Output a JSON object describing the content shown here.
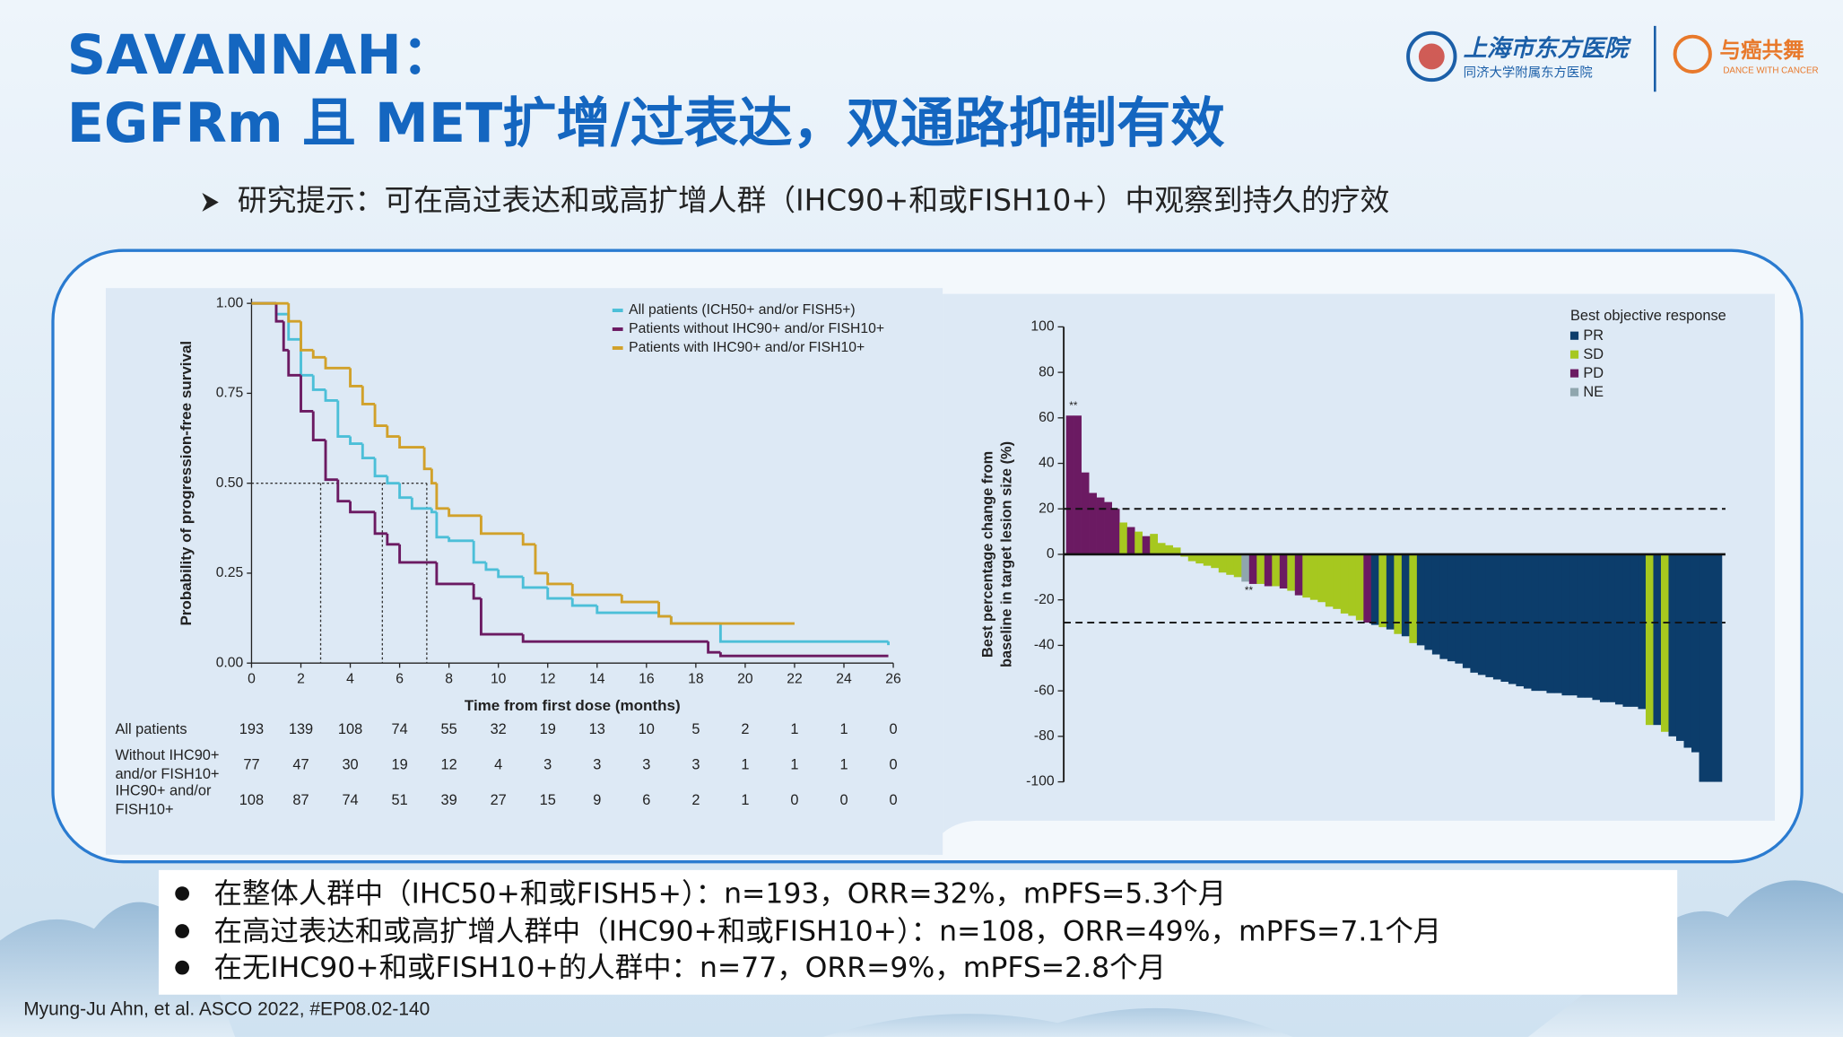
{
  "slide": {
    "title_lines": [
      "SAVANNAH：",
      "EGFRm 且 MET扩增/过表达，双通路抑制有效"
    ],
    "subtitle": "研究提示：可在高过表达和或高扩增人群（IHC90+和或FISH10+）中观察到持久的疗效",
    "bullets": [
      "在整体人群中（IHC50+和或FISH5+）：n=193，ORR=32%，mPFS=5.3个月",
      "在高过表达和或高扩增人群中（IHC90+和或FISH10+）：n=108，ORR=49%，mPFS=7.1个月",
      "在无IHC90+和或FISH10+的人群中：n=77，ORR=9%，mPFS=2.8个月"
    ],
    "footnote": "Myung-Ju Ahn, et al. ASCO 2022, #EP08.02-140",
    "logos": {
      "hospital": "上海市东方医院",
      "hospital_sub": "同济大学附属东方医院",
      "partner": "与癌共舞",
      "partner_sub": "DANCE WITH CANCER"
    }
  },
  "chart_data": [
    {
      "type": "km",
      "x_label": "Time from first dose (months)",
      "y_label": "Probability of progression-free survival",
      "xlim": [
        0,
        26
      ],
      "ylim": [
        0,
        1
      ],
      "xticks": [
        0,
        2,
        4,
        6,
        8,
        10,
        12,
        14,
        16,
        18,
        20,
        22,
        24,
        26
      ],
      "yticks": [
        {
          "value": 0,
          "label": "0.00"
        },
        0.25,
        {
          "value": 0.5,
          "label": "0.50"
        },
        0.75,
        {
          "value": 1,
          "label": "1.00"
        }
      ],
      "median_pfs": [
        2.8,
        5.3,
        7.1
      ],
      "series": [
        {
          "name": "All patients (ICH50+ and/or FISH5+)",
          "color": "#4cbfd8",
          "x": [
            0,
            1,
            1.5,
            2,
            2.5,
            3,
            3.5,
            4,
            4.5,
            5,
            5.5,
            6,
            6.5,
            7.3,
            7.5,
            8,
            9,
            9.5,
            10,
            11,
            12,
            13,
            14,
            16.5,
            17,
            19,
            25.8
          ],
          "values": [
            1,
            0.97,
            0.9,
            0.8,
            0.76,
            0.73,
            0.63,
            0.61,
            0.57,
            0.52,
            0.5,
            0.46,
            0.43,
            0.42,
            0.35,
            0.34,
            0.28,
            0.26,
            0.24,
            0.21,
            0.18,
            0.16,
            0.14,
            0.13,
            0.11,
            0.06,
            0.05
          ]
        },
        {
          "name": "Patients without IHC90+ and/or FISH10+",
          "color": "#6b1a62",
          "x": [
            0,
            1,
            1.3,
            1.5,
            2,
            2.5,
            3,
            3.5,
            4,
            5,
            5.5,
            6,
            7.5,
            9,
            9.3,
            11,
            18.5,
            19,
            25.8
          ],
          "values": [
            1,
            0.95,
            0.87,
            0.8,
            0.7,
            0.62,
            0.51,
            0.45,
            0.42,
            0.36,
            0.33,
            0.28,
            0.22,
            0.18,
            0.08,
            0.06,
            0.03,
            0.02,
            0.02
          ]
        },
        {
          "name": "Patients with IHC90+ and/or FISH10+",
          "color": "#d1a12a",
          "x": [
            0,
            1.5,
            2,
            2.5,
            3,
            4,
            4.5,
            5,
            5.5,
            6,
            7,
            7.3,
            7.5,
            8,
            9.3,
            11,
            11.5,
            12,
            13,
            15,
            16.5,
            17,
            22
          ],
          "values": [
            1,
            0.95,
            0.87,
            0.85,
            0.82,
            0.77,
            0.72,
            0.66,
            0.63,
            0.6,
            0.54,
            0.5,
            0.43,
            0.41,
            0.36,
            0.33,
            0.25,
            0.22,
            0.19,
            0.17,
            0.13,
            0.11,
            0.11
          ]
        }
      ],
      "risk_table": [
        {
          "label": [
            "All patients"
          ],
          "values": [
            193,
            139,
            108,
            74,
            55,
            32,
            19,
            13,
            10,
            5,
            2,
            1,
            1,
            0
          ]
        },
        {
          "label": [
            "Without IHC90+",
            "and/or FISH10+"
          ],
          "values": [
            77,
            47,
            30,
            19,
            12,
            4,
            3,
            3,
            3,
            3,
            1,
            1,
            1,
            0
          ]
        },
        {
          "label": [
            "IHC90+ and/or",
            "FISH10+"
          ],
          "values": [
            108,
            87,
            74,
            51,
            39,
            27,
            15,
            9,
            6,
            2,
            1,
            0,
            0,
            0
          ]
        }
      ]
    },
    {
      "type": "waterfall",
      "y_label": [
        "Best percentage change from",
        "baseline in target lesion size (%)"
      ],
      "ylim": [
        -100,
        100
      ],
      "yticks": [
        -100,
        -80,
        -60,
        -40,
        -20,
        0,
        20,
        40,
        60,
        80,
        100
      ],
      "reference_lines": [
        20,
        -30
      ],
      "legend_title": "Best objective response",
      "legend": [
        {
          "name": "PR",
          "color": "#0c3d6b"
        },
        {
          "name": "SD",
          "color": "#a6c81f"
        },
        {
          "name": "PD",
          "color": "#6b1a62"
        },
        {
          "name": "NE",
          "color": "#8fa6ae"
        }
      ],
      "annotations": [
        "**",
        "**"
      ],
      "values": [
        61,
        61,
        36,
        27,
        25,
        23,
        20,
        14,
        12,
        10,
        8,
        9,
        5,
        4,
        3,
        -1,
        -3,
        -4,
        -5,
        -6,
        -8,
        -9,
        -10,
        -12,
        -13,
        -13,
        -14,
        -14,
        -15,
        -16,
        -18,
        -19,
        -20,
        -21,
        -23,
        -24,
        -26,
        -27,
        -29,
        -30,
        -31,
        -32,
        -33,
        -35,
        -36,
        -39,
        -40,
        -42,
        -44,
        -46,
        -47,
        -48,
        -50,
        -52,
        -53,
        -54,
        -55,
        -56,
        -57,
        -58,
        -59,
        -60,
        -60,
        -61,
        -61,
        -62,
        -62,
        -63,
        -63,
        -64,
        -65,
        -65,
        -66,
        -67,
        -67,
        -68,
        -75,
        -75,
        -78,
        -80,
        -82,
        -85,
        -87,
        -100,
        -100,
        -100
      ],
      "responses": [
        "PD",
        "PD",
        "PD",
        "PD",
        "PD",
        "PD",
        "PD",
        "SD",
        "PD",
        "SD",
        "PD",
        "SD",
        "SD",
        "SD",
        "SD",
        "SD",
        "SD",
        "SD",
        "SD",
        "SD",
        "SD",
        "SD",
        "SD",
        "NE",
        "PD",
        "SD",
        "PD",
        "SD",
        "PD",
        "SD",
        "PD",
        "SD",
        "SD",
        "SD",
        "SD",
        "SD",
        "SD",
        "SD",
        "SD",
        "PD",
        "PR",
        "SD",
        "PR",
        "SD",
        "PR",
        "SD",
        "PR",
        "PR",
        "PR",
        "PR",
        "PR",
        "PR",
        "PR",
        "PR",
        "PR",
        "PR",
        "PR",
        "PR",
        "PR",
        "PR",
        "PR",
        "PR",
        "PR",
        "PR",
        "PR",
        "PR",
        "PR",
        "PR",
        "PR",
        "PR",
        "PR",
        "PR",
        "PR",
        "PR",
        "PR",
        "PR",
        "SD",
        "PR",
        "SD",
        "PR",
        "PR",
        "PR",
        "PR",
        "PR",
        "PR",
        "PR"
      ]
    }
  ]
}
